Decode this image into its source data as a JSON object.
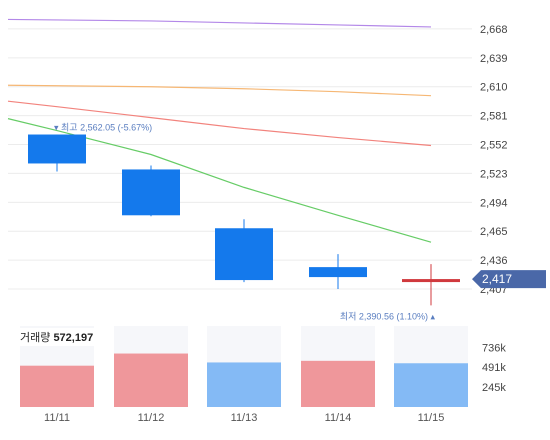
{
  "chart_data": {
    "type": "candlestick",
    "categories": [
      "11/11",
      "11/12",
      "11/13",
      "11/14",
      "11/15"
    ],
    "ohlc": [
      {
        "open": 2562.05,
        "high": 2562.05,
        "low": 2525,
        "close": 2533
      },
      {
        "open": 2527,
        "high": 2531,
        "low": 2480,
        "close": 2481
      },
      {
        "open": 2468,
        "high": 2477,
        "low": 2414,
        "close": 2416
      },
      {
        "open": 2429,
        "high": 2442,
        "low": 2407,
        "close": 2419
      },
      {
        "open": 2417,
        "high": 2432,
        "low": 2390.56,
        "close": 2417
      }
    ],
    "candle_colors": {
      "down": "#1479ec",
      "up": "#d0393d"
    },
    "moving_averages": [
      {
        "color": "#b388e8",
        "values": [
          2677,
          2676,
          2674,
          2672,
          2670
        ]
      },
      {
        "color": "#f6b774",
        "values": [
          2611,
          2610,
          2608,
          2605,
          2601
        ]
      },
      {
        "color": "#f2837d",
        "values": [
          2590,
          2579,
          2568,
          2559,
          2551
        ]
      },
      {
        "color": "#66cc66",
        "values": [
          2566,
          2542,
          2509,
          2481,
          2454
        ]
      }
    ],
    "y_ticks": [
      "2,668",
      "2,639",
      "2,610",
      "2,581",
      "2,552",
      "2,523",
      "2,494",
      "2,465",
      "2,436",
      "2,407"
    ],
    "y_tick_values": [
      2668,
      2639,
      2610,
      2581,
      2552,
      2523,
      2494,
      2465,
      2436,
      2407
    ],
    "ylim": [
      2394,
      2691
    ],
    "current_price": {
      "label": "2,417",
      "value": 2417,
      "color": "#4a68a8"
    },
    "high_annotation": {
      "text": "▾ 최고 2,562.05 (-5.67%)",
      "value": 2562.05,
      "index": 0,
      "color": "#5a7ec0"
    },
    "low_annotation": {
      "text": "최저 2,390.56 (1.10%) ▴",
      "value": 2390.56,
      "index": 4,
      "color": "#5a7ec0"
    },
    "volume": {
      "label": "거래량",
      "value_label": "572,197",
      "values": [
        510000,
        660000,
        550000,
        570000,
        540000
      ],
      "colors": [
        "#ef979b",
        "#ef979b",
        "#84baf5",
        "#ef979b",
        "#84baf5"
      ],
      "max": 1000000,
      "y_ticks": [
        "736k",
        "491k",
        "245k"
      ],
      "y_tick_values": [
        736000,
        491000,
        245000
      ]
    }
  }
}
